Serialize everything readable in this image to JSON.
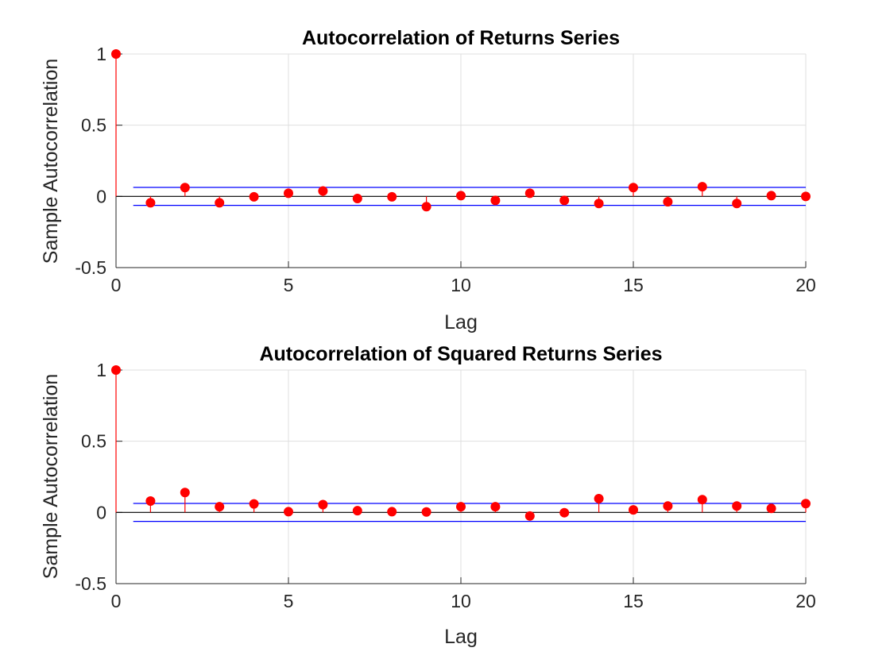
{
  "chart_data": [
    {
      "type": "stem",
      "title": "Autocorrelation of Returns Series",
      "xlabel": "Lag",
      "ylabel": "Sample Autocorrelation",
      "xlim": [
        0,
        20
      ],
      "ylim": [
        -0.5,
        1
      ],
      "xticks": [
        "0",
        "5",
        "10",
        "15",
        "20"
      ],
      "yticks": [
        "-0.5",
        "0",
        "0.5",
        "1"
      ],
      "grid": true,
      "lags": [
        0,
        1,
        2,
        3,
        4,
        5,
        6,
        7,
        8,
        9,
        10,
        11,
        12,
        13,
        14,
        15,
        16,
        17,
        18,
        19,
        20
      ],
      "values": [
        1,
        -0.045,
        0.062,
        -0.045,
        -0.003,
        0.022,
        0.038,
        -0.015,
        -0.003,
        -0.072,
        0.005,
        -0.028,
        0.022,
        -0.028,
        -0.05,
        0.062,
        -0.038,
        0.068,
        -0.05,
        0.005,
        0.0
      ],
      "confidence_bounds": [
        0.063,
        -0.063
      ],
      "colors": {
        "stem": "#ff0000",
        "bounds": "#0000ff",
        "zero": "#000000"
      }
    },
    {
      "type": "stem",
      "title": "Autocorrelation of Squared Returns Series",
      "xlabel": "Lag",
      "ylabel": "Sample Autocorrelation",
      "xlim": [
        0,
        20
      ],
      "ylim": [
        -0.5,
        1
      ],
      "xticks": [
        "0",
        "5",
        "10",
        "15",
        "20"
      ],
      "yticks": [
        "-0.5",
        "0",
        "0.5",
        "1"
      ],
      "grid": true,
      "lags": [
        0,
        1,
        2,
        3,
        4,
        5,
        6,
        7,
        8,
        9,
        10,
        11,
        12,
        13,
        14,
        15,
        16,
        17,
        18,
        19,
        20
      ],
      "values": [
        1,
        0.08,
        0.14,
        0.04,
        0.06,
        0.005,
        0.055,
        0.012,
        0.005,
        0.003,
        0.04,
        0.04,
        -0.025,
        -0.002,
        0.097,
        0.018,
        0.045,
        0.09,
        0.045,
        0.028,
        0.062
      ],
      "confidence_bounds": [
        0.063,
        -0.063
      ],
      "colors": {
        "stem": "#ff0000",
        "bounds": "#0000ff",
        "zero": "#000000"
      }
    }
  ]
}
